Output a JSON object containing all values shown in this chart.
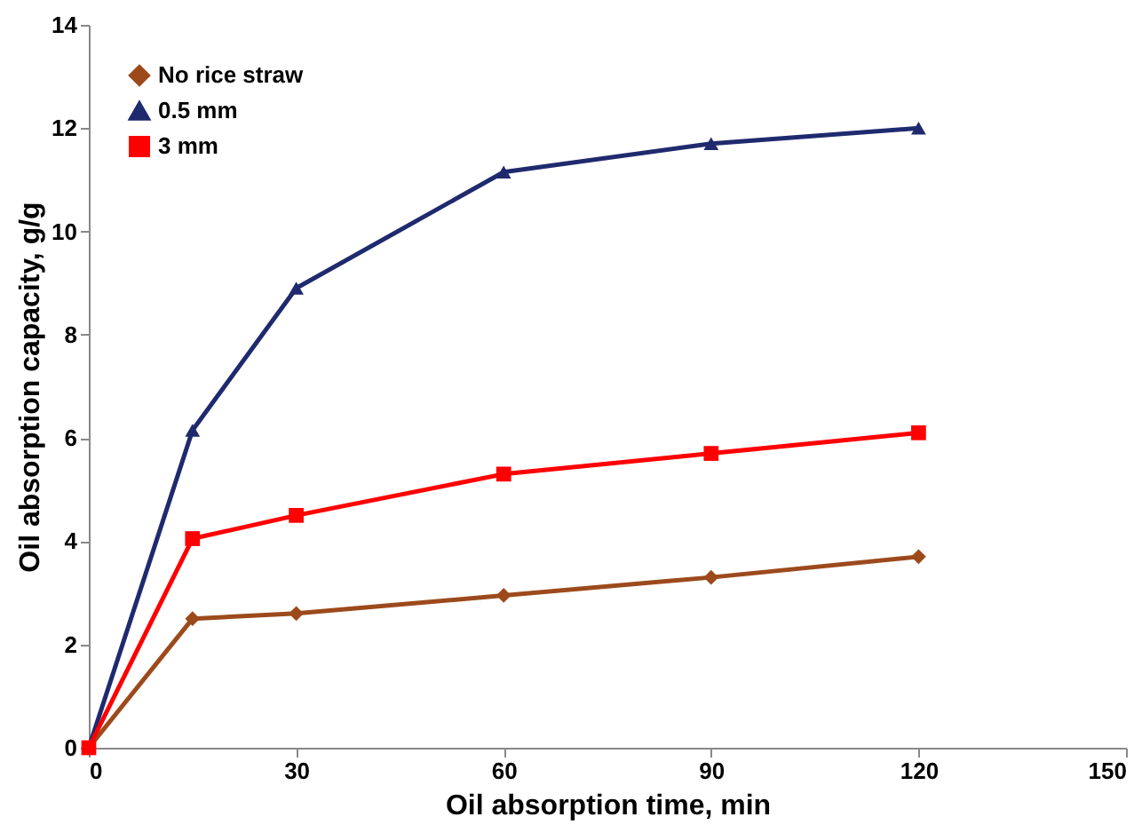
{
  "chart_data": {
    "type": "line",
    "xlabel": "Oil absorption time, min",
    "ylabel": "Oil absorption capacity, g/g",
    "x": [
      0,
      15,
      30,
      60,
      90,
      120
    ],
    "series": [
      {
        "name": "No rice straw",
        "color": "#9c4a1c",
        "marker": "diamond",
        "values": [
          0,
          2.5,
          2.6,
          2.95,
          3.3,
          3.7
        ]
      },
      {
        "name": "0.5 mm",
        "color": "#1f2a6e",
        "marker": "triangle",
        "values": [
          0,
          6.15,
          8.9,
          11.15,
          11.7,
          12.0
        ]
      },
      {
        "name": "3 mm",
        "color": "#ff0000",
        "marker": "square",
        "values": [
          0,
          4.05,
          4.5,
          5.3,
          5.7,
          6.1
        ]
      }
    ],
    "xlim": [
      0,
      150
    ],
    "xticks": [
      0,
      30,
      60,
      90,
      120,
      150
    ],
    "ylim": [
      0,
      14
    ],
    "yticks": [
      0,
      2,
      4,
      6,
      8,
      10,
      12,
      14
    ],
    "grid": false,
    "legend": "top left",
    "line_style": "solid"
  }
}
